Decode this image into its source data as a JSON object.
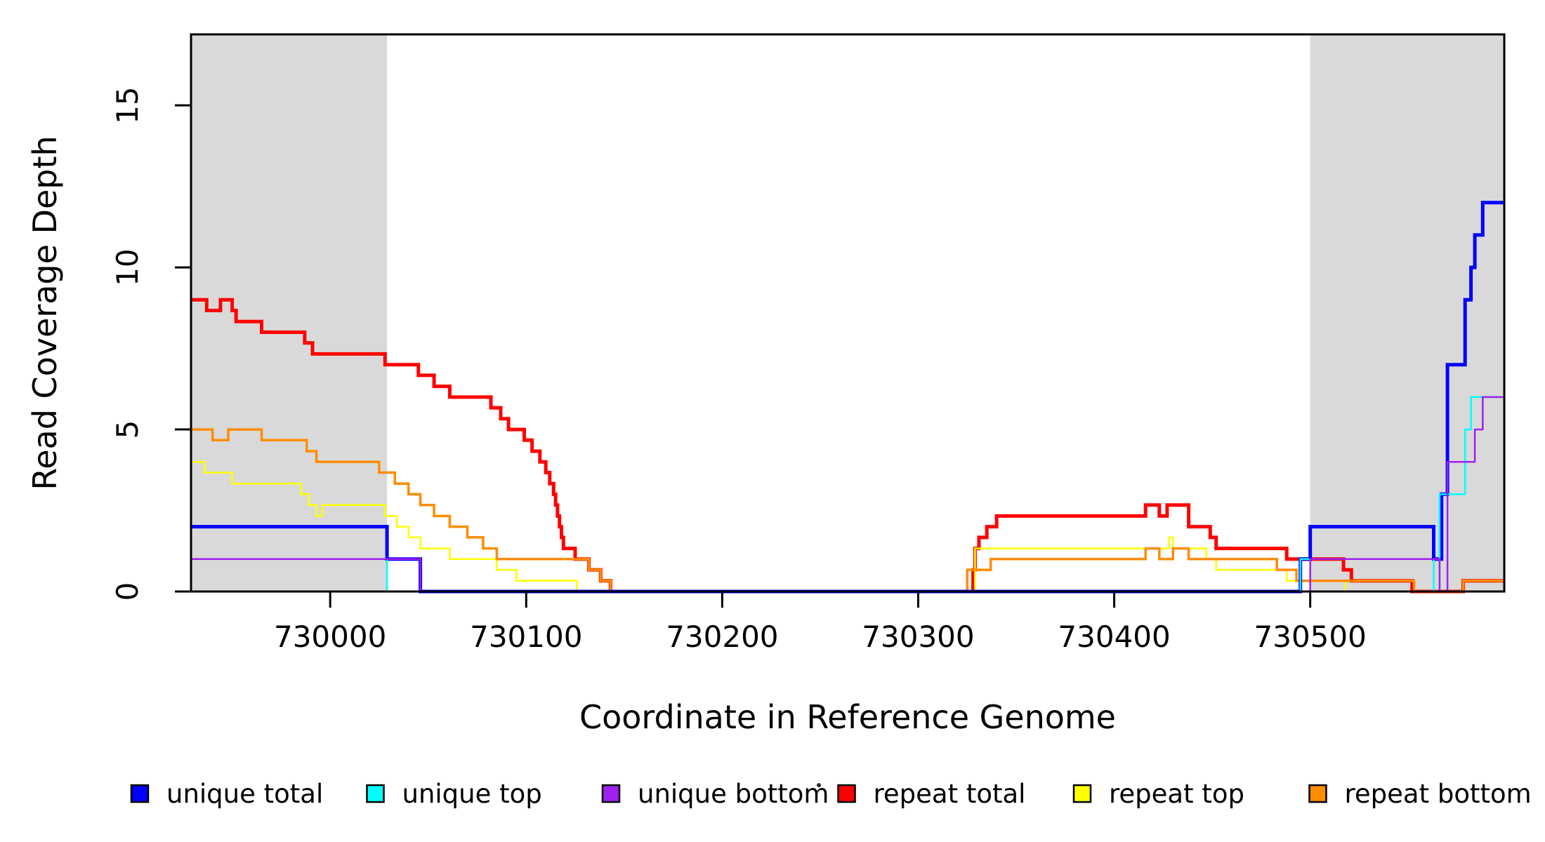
{
  "figure": {
    "background": "#FFFFFF",
    "title": ""
  },
  "chart_data": {
    "type": "line",
    "subtype": "step-coverage",
    "title": "",
    "xlabel": "Coordinate in Reference Genome",
    "ylabel": "Read Coverage Depth",
    "xlim": [
      729929,
      730599
    ],
    "ylim": [
      0,
      17.19
    ],
    "xticks": [
      730000,
      730100,
      730200,
      730300,
      730400,
      730500
    ],
    "xtick_labels": [
      "730000",
      "730100",
      "730200",
      "730300",
      "730400",
      "730500"
    ],
    "yticks": [
      0,
      5,
      10,
      15
    ],
    "ytick_labels": [
      "0",
      "5",
      "10",
      "15"
    ],
    "grid": false,
    "legend_position": "bottom",
    "axis_color": "#000000",
    "shaded_regions": [
      {
        "x0": 729929,
        "x1": 730029,
        "color": "#D9D9D9"
      },
      {
        "x0": 730500,
        "x1": 730599,
        "color": "#D9D9D9"
      }
    ],
    "series": [
      {
        "name": "repeat total",
        "color": "#FF0000",
        "line_width": 5,
        "steps": [
          [
            729929,
            9
          ],
          [
            729937,
            8.67
          ],
          [
            729944,
            9
          ],
          [
            729950,
            8.67
          ],
          [
            729952,
            8.33
          ],
          [
            729965,
            8
          ],
          [
            729987,
            7.67
          ],
          [
            729991,
            7.33
          ],
          [
            730028,
            7
          ],
          [
            730045,
            6.67
          ],
          [
            730053,
            6.33
          ],
          [
            730061,
            6
          ],
          [
            730082,
            5.67
          ],
          [
            730087,
            5.33
          ],
          [
            730091,
            5
          ],
          [
            730099,
            4.67
          ],
          [
            730103,
            4.33
          ],
          [
            730107,
            4
          ],
          [
            730110,
            3.67
          ],
          [
            730112,
            3.33
          ],
          [
            730114,
            3
          ],
          [
            730115,
            2.67
          ],
          [
            730116,
            2.33
          ],
          [
            730117,
            2
          ],
          [
            730118,
            1.67
          ],
          [
            730119,
            1.33
          ],
          [
            730125,
            1
          ],
          [
            730132,
            0.67
          ],
          [
            730138,
            0.33
          ],
          [
            730143,
            0
          ],
          [
            730328,
            0.67
          ],
          [
            730329,
            1.33
          ],
          [
            730331,
            1.67
          ],
          [
            730335,
            2
          ],
          [
            730340,
            2.33
          ],
          [
            730416,
            2.67
          ],
          [
            730423,
            2.33
          ],
          [
            730427,
            2.67
          ],
          [
            730438,
            2
          ],
          [
            730449,
            1.67
          ],
          [
            730452,
            1.33
          ],
          [
            730488,
            1
          ],
          [
            730517,
            0.67
          ],
          [
            730521,
            0.33
          ],
          [
            730552,
            0
          ],
          [
            730578,
            0.33
          ],
          [
            730599,
            0.33
          ]
        ]
      },
      {
        "name": "repeat top",
        "color": "#FFFF00",
        "line_width": 2.5,
        "steps": [
          [
            729929,
            4
          ],
          [
            729936,
            3.67
          ],
          [
            729950,
            3.33
          ],
          [
            729985,
            3
          ],
          [
            729989,
            2.67
          ],
          [
            729993,
            2.33
          ],
          [
            729996,
            2.67
          ],
          [
            730028,
            2.33
          ],
          [
            730034,
            2
          ],
          [
            730040,
            1.67
          ],
          [
            730046,
            1.33
          ],
          [
            730061,
            1
          ],
          [
            730085,
            0.67
          ],
          [
            730095,
            0.33
          ],
          [
            730126,
            0
          ],
          [
            730329,
            1.33
          ],
          [
            730428,
            1.67
          ],
          [
            730430,
            1.33
          ],
          [
            730447,
            1
          ],
          [
            730452,
            0.67
          ],
          [
            730488,
            0.33
          ],
          [
            730518,
            0
          ],
          [
            730599,
            0
          ]
        ]
      },
      {
        "name": "repeat bottom",
        "color": "#FF8C00",
        "line_width": 3.5,
        "steps": [
          [
            729929,
            5
          ],
          [
            729940,
            4.67
          ],
          [
            729948,
            5
          ],
          [
            729965,
            4.67
          ],
          [
            729988,
            4.33
          ],
          [
            729993,
            4
          ],
          [
            730025,
            3.67
          ],
          [
            730033,
            3.33
          ],
          [
            730040,
            3
          ],
          [
            730046,
            2.67
          ],
          [
            730053,
            2.33
          ],
          [
            730061,
            2
          ],
          [
            730070,
            1.67
          ],
          [
            730078,
            1.33
          ],
          [
            730085,
            1
          ],
          [
            730132,
            0.67
          ],
          [
            730138,
            0.33
          ],
          [
            730143,
            0
          ],
          [
            730325,
            0.67
          ],
          [
            730337,
            1
          ],
          [
            730416,
            1.33
          ],
          [
            730423,
            1
          ],
          [
            730430,
            1.33
          ],
          [
            730438,
            1
          ],
          [
            730483,
            0.67
          ],
          [
            730493,
            0.33
          ],
          [
            730553,
            0
          ],
          [
            730578,
            0.33
          ],
          [
            730599,
            0.33
          ]
        ]
      },
      {
        "name": "unique total",
        "color": "#0000FF",
        "line_width": 5,
        "steps": [
          [
            729929,
            2
          ],
          [
            730029,
            1
          ],
          [
            730046,
            0
          ],
          [
            730495,
            1
          ],
          [
            730500,
            2
          ],
          [
            730563,
            1
          ],
          [
            730567,
            3
          ],
          [
            730570,
            7
          ],
          [
            730579,
            9
          ],
          [
            730582,
            10
          ],
          [
            730584,
            11
          ],
          [
            730588,
            12
          ],
          [
            730599,
            12
          ]
        ]
      },
      {
        "name": "unique top",
        "color": "#00FFFF",
        "line_width": 2.5,
        "steps": [
          [
            729929,
            1
          ],
          [
            730029,
            0
          ],
          [
            730495,
            1
          ],
          [
            730563,
            0
          ],
          [
            730566,
            3
          ],
          [
            730579,
            5
          ],
          [
            730582,
            6
          ],
          [
            730599,
            6
          ]
        ]
      },
      {
        "name": "unique bottom",
        "color": "#A020F0",
        "line_width": 2.5,
        "steps": [
          [
            729929,
            1
          ],
          [
            730046,
            0
          ],
          [
            730500,
            1
          ],
          [
            730566,
            0
          ],
          [
            730570,
            4
          ],
          [
            730584,
            5
          ],
          [
            730588,
            6
          ],
          [
            730599,
            6
          ]
        ]
      }
    ]
  },
  "legend": {
    "entries": [
      {
        "label": "unique total",
        "color": "#0000FF"
      },
      {
        "label": "unique top",
        "color": "#00FFFF"
      },
      {
        "label": "unique bottom",
        "color": "#A020F0"
      },
      {
        "label": "repeat total",
        "color": "#FF0000"
      },
      {
        "label": "repeat top",
        "color": "#FFFF00"
      },
      {
        "label": "repeat bottom",
        "color": "#FF8C00"
      }
    ],
    "has_stray_dot_before_repeat_total": true
  }
}
